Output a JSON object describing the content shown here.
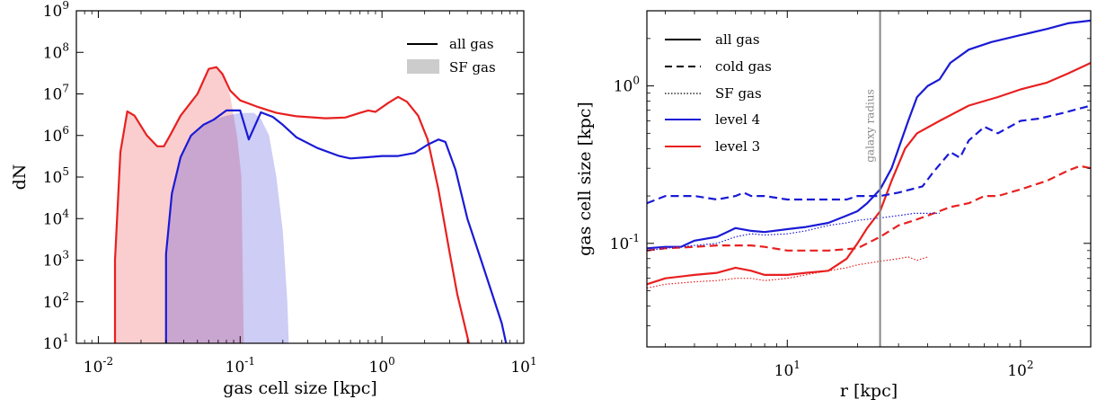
{
  "chart_data": [
    {
      "type": "line",
      "xscale": "log",
      "yscale": "log",
      "xlim": [
        0.007,
        10
      ],
      "ylim": [
        10,
        1000000000
      ],
      "xlabel": "gas cell size [kpc]",
      "ylabel": "dN",
      "x_ticks": [
        0.01,
        0.1,
        1,
        10
      ],
      "y_ticks": [
        10,
        100,
        1000,
        10000,
        100000,
        1000000,
        10000000,
        100000000,
        1000000000
      ],
      "legend": {
        "placement": "top-right",
        "entries": [
          {
            "label": "all gas",
            "style": "solid-line"
          },
          {
            "label": "SF gas",
            "style": "filled-gray"
          }
        ]
      },
      "series": [
        {
          "color": "#e82020",
          "style": "solid",
          "points": [
            [
              0.0131,
              10
            ],
            [
              0.0131,
              1000
            ],
            [
              0.0143,
              400000
            ],
            [
              0.016,
              3800000
            ],
            [
              0.018,
              3000000
            ],
            [
              0.022,
              1000000
            ],
            [
              0.026,
              550000
            ],
            [
              0.029,
              550000
            ],
            [
              0.032,
              1000000
            ],
            [
              0.038,
              3000000
            ],
            [
              0.05,
              10000000
            ],
            [
              0.06,
              40000000
            ],
            [
              0.068,
              44000000
            ],
            [
              0.075,
              30000000
            ],
            [
              0.085,
              12000000
            ],
            [
              0.1,
              7000000
            ],
            [
              0.13,
              5000000
            ],
            [
              0.18,
              3500000
            ],
            [
              0.25,
              2900000
            ],
            [
              0.4,
              2600000
            ],
            [
              0.55,
              2700000
            ],
            [
              0.7,
              3500000
            ],
            [
              0.8,
              4000000
            ],
            [
              0.9,
              3700000
            ],
            [
              1.1,
              6000000
            ],
            [
              1.3,
              8500000
            ],
            [
              1.5,
              6500000
            ],
            [
              1.8,
              3000000
            ],
            [
              2.1,
              800000
            ],
            [
              2.5,
              50000
            ],
            [
              3,
              1500
            ],
            [
              3.4,
              150
            ],
            [
              3.8,
              30
            ],
            [
              4.1,
              10
            ]
          ]
        },
        {
          "color": "#1a1ad6",
          "style": "solid",
          "points": [
            [
              0.03,
              10
            ],
            [
              0.03,
              1400
            ],
            [
              0.033,
              40000
            ],
            [
              0.038,
              300000
            ],
            [
              0.045,
              1000000
            ],
            [
              0.055,
              1800000
            ],
            [
              0.065,
              2400000
            ],
            [
              0.08,
              4000000
            ],
            [
              0.1,
              4000000
            ],
            [
              0.115,
              800000
            ],
            [
              0.14,
              3600000
            ],
            [
              0.17,
              2800000
            ],
            [
              0.2,
              1800000
            ],
            [
              0.25,
              900000
            ],
            [
              0.35,
              500000
            ],
            [
              0.5,
              320000
            ],
            [
              0.6,
              280000
            ],
            [
              0.8,
              300000
            ],
            [
              1,
              320000
            ],
            [
              1.3,
              320000
            ],
            [
              1.7,
              380000
            ],
            [
              2.1,
              600000
            ],
            [
              2.5,
              800000
            ],
            [
              2.8,
              700000
            ],
            [
              3.3,
              150000
            ],
            [
              4,
              10000
            ],
            [
              5,
              1000
            ],
            [
              6,
              150
            ],
            [
              7,
              30
            ],
            [
              7.5,
              10
            ]
          ]
        },
        {
          "color": "#e82020",
          "style": "filled",
          "points": [
            [
              0.0131,
              10
            ],
            [
              0.0131,
              1000
            ],
            [
              0.0143,
              400000
            ],
            [
              0.016,
              3800000
            ],
            [
              0.018,
              3000000
            ],
            [
              0.022,
              1000000
            ],
            [
              0.026,
              550000
            ],
            [
              0.029,
              550000
            ],
            [
              0.032,
              1000000
            ],
            [
              0.038,
              3000000
            ],
            [
              0.05,
              10000000
            ],
            [
              0.06,
              40000000
            ],
            [
              0.068,
              44000000
            ],
            [
              0.075,
              30000000
            ],
            [
              0.085,
              9000000
            ],
            [
              0.095,
              1000000
            ],
            [
              0.102,
              100000
            ],
            [
              0.106,
              10
            ]
          ]
        },
        {
          "color": "#1a1ad6",
          "style": "filled",
          "points": [
            [
              0.03,
              10
            ],
            [
              0.03,
              1400
            ],
            [
              0.033,
              40000
            ],
            [
              0.038,
              300000
            ],
            [
              0.045,
              1000000
            ],
            [
              0.055,
              1800000
            ],
            [
              0.065,
              2400000
            ],
            [
              0.08,
              3000000
            ],
            [
              0.1,
              3500000
            ],
            [
              0.125,
              3500000
            ],
            [
              0.14,
              2500000
            ],
            [
              0.16,
              1000000
            ],
            [
              0.18,
              100000
            ],
            [
              0.2,
              5000
            ],
            [
              0.215,
              100
            ],
            [
              0.22,
              10
            ]
          ]
        }
      ]
    },
    {
      "type": "line",
      "xscale": "log",
      "yscale": "log",
      "xlim": [
        2.5,
        200
      ],
      "ylim": [
        0.022,
        3
      ],
      "xlabel": "r [kpc]",
      "ylabel": "gas cell size [kpc]",
      "x_ticks": [
        10,
        100
      ],
      "y_ticks": [
        0.1,
        1
      ],
      "vline": {
        "x": 25,
        "label": "galaxy radius",
        "color": "#888888"
      },
      "legend": {
        "placement": "top-left",
        "entries": [
          {
            "label": "all gas",
            "style": "solid"
          },
          {
            "label": "cold gas",
            "style": "dashed"
          },
          {
            "label": "SF gas",
            "style": "dotted"
          },
          {
            "label": "level 4",
            "style": "solid",
            "color": "#1a1ad6"
          },
          {
            "label": "level 3",
            "style": "solid",
            "color": "#e82020"
          }
        ]
      },
      "series": [
        {
          "color": "#1a1ad6",
          "style": "solid",
          "points": [
            [
              2.5,
              0.093
            ],
            [
              3,
              0.095
            ],
            [
              3.5,
              0.095
            ],
            [
              4,
              0.104
            ],
            [
              5,
              0.11
            ],
            [
              6,
              0.125
            ],
            [
              7,
              0.12
            ],
            [
              8,
              0.118
            ],
            [
              10,
              0.123
            ],
            [
              12,
              0.127
            ],
            [
              15,
              0.135
            ],
            [
              18,
              0.15
            ],
            [
              20,
              0.16
            ],
            [
              22,
              0.18
            ],
            [
              25,
              0.22
            ],
            [
              28,
              0.3
            ],
            [
              30,
              0.4
            ],
            [
              33,
              0.6
            ],
            [
              36,
              0.85
            ],
            [
              40,
              1
            ],
            [
              45,
              1.1
            ],
            [
              50,
              1.4
            ],
            [
              60,
              1.7
            ],
            [
              75,
              1.9
            ],
            [
              100,
              2.1
            ],
            [
              130,
              2.3
            ],
            [
              160,
              2.5
            ],
            [
              200,
              2.6
            ]
          ]
        },
        {
          "color": "#e82020",
          "style": "solid",
          "points": [
            [
              2.5,
              0.055
            ],
            [
              3,
              0.06
            ],
            [
              4,
              0.063
            ],
            [
              5,
              0.065
            ],
            [
              6,
              0.07
            ],
            [
              7,
              0.067
            ],
            [
              8,
              0.063
            ],
            [
              10,
              0.063
            ],
            [
              12,
              0.065
            ],
            [
              15,
              0.067
            ],
            [
              18,
              0.08
            ],
            [
              20,
              0.1
            ],
            [
              22,
              0.125
            ],
            [
              25,
              0.16
            ],
            [
              28,
              0.25
            ],
            [
              32,
              0.4
            ],
            [
              36,
              0.5
            ],
            [
              45,
              0.6
            ],
            [
              60,
              0.75
            ],
            [
              80,
              0.85
            ],
            [
              100,
              0.95
            ],
            [
              130,
              1.05
            ],
            [
              160,
              1.2
            ],
            [
              200,
              1.4
            ]
          ]
        },
        {
          "color": "#1a1ad6",
          "style": "dashed",
          "points": [
            [
              2.5,
              0.18
            ],
            [
              3,
              0.2
            ],
            [
              4,
              0.2
            ],
            [
              5,
              0.19
            ],
            [
              6,
              0.2
            ],
            [
              6.5,
              0.21
            ],
            [
              7,
              0.2
            ],
            [
              8,
              0.2
            ],
            [
              10,
              0.19
            ],
            [
              12,
              0.19
            ],
            [
              15,
              0.19
            ],
            [
              18,
              0.19
            ],
            [
              20,
              0.2
            ],
            [
              25,
              0.2
            ],
            [
              30,
              0.21
            ],
            [
              38,
              0.23
            ],
            [
              42,
              0.28
            ],
            [
              50,
              0.38
            ],
            [
              55,
              0.35
            ],
            [
              60,
              0.45
            ],
            [
              70,
              0.55
            ],
            [
              80,
              0.5
            ],
            [
              100,
              0.6
            ],
            [
              120,
              0.62
            ],
            [
              150,
              0.67
            ],
            [
              200,
              0.75
            ]
          ]
        },
        {
          "color": "#e82020",
          "style": "dashed",
          "points": [
            [
              2.5,
              0.09
            ],
            [
              3,
              0.093
            ],
            [
              4,
              0.095
            ],
            [
              5,
              0.097
            ],
            [
              6,
              0.097
            ],
            [
              7,
              0.097
            ],
            [
              8,
              0.095
            ],
            [
              10,
              0.09
            ],
            [
              12,
              0.09
            ],
            [
              15,
              0.09
            ],
            [
              20,
              0.093
            ],
            [
              25,
              0.11
            ],
            [
              30,
              0.13
            ],
            [
              35,
              0.14
            ],
            [
              40,
              0.15
            ],
            [
              50,
              0.17
            ],
            [
              60,
              0.18
            ],
            [
              70,
              0.2
            ],
            [
              80,
              0.2
            ],
            [
              100,
              0.22
            ],
            [
              130,
              0.25
            ],
            [
              160,
              0.29
            ],
            [
              180,
              0.31
            ],
            [
              200,
              0.3
            ]
          ]
        },
        {
          "color": "#1a1ad6",
          "style": "dotted",
          "points": [
            [
              2.5,
              0.09
            ],
            [
              3,
              0.093
            ],
            [
              4,
              0.097
            ],
            [
              5,
              0.1
            ],
            [
              6,
              0.11
            ],
            [
              7,
              0.115
            ],
            [
              8,
              0.113
            ],
            [
              10,
              0.115
            ],
            [
              12,
              0.12
            ],
            [
              15,
              0.13
            ],
            [
              18,
              0.135
            ],
            [
              20,
              0.14
            ],
            [
              25,
              0.145
            ],
            [
              30,
              0.15
            ],
            [
              35,
              0.155
            ],
            [
              40,
              0.155
            ],
            [
              45,
              0.155
            ]
          ]
        },
        {
          "color": "#e82020",
          "style": "dotted",
          "points": [
            [
              2.5,
              0.052
            ],
            [
              3,
              0.055
            ],
            [
              4,
              0.057
            ],
            [
              5,
              0.058
            ],
            [
              6,
              0.06
            ],
            [
              7,
              0.06
            ],
            [
              8,
              0.058
            ],
            [
              10,
              0.06
            ],
            [
              12,
              0.063
            ],
            [
              15,
              0.067
            ],
            [
              18,
              0.07
            ],
            [
              20,
              0.073
            ],
            [
              25,
              0.077
            ],
            [
              30,
              0.08
            ],
            [
              33,
              0.082
            ],
            [
              36,
              0.078
            ],
            [
              40,
              0.082
            ]
          ]
        }
      ]
    }
  ]
}
